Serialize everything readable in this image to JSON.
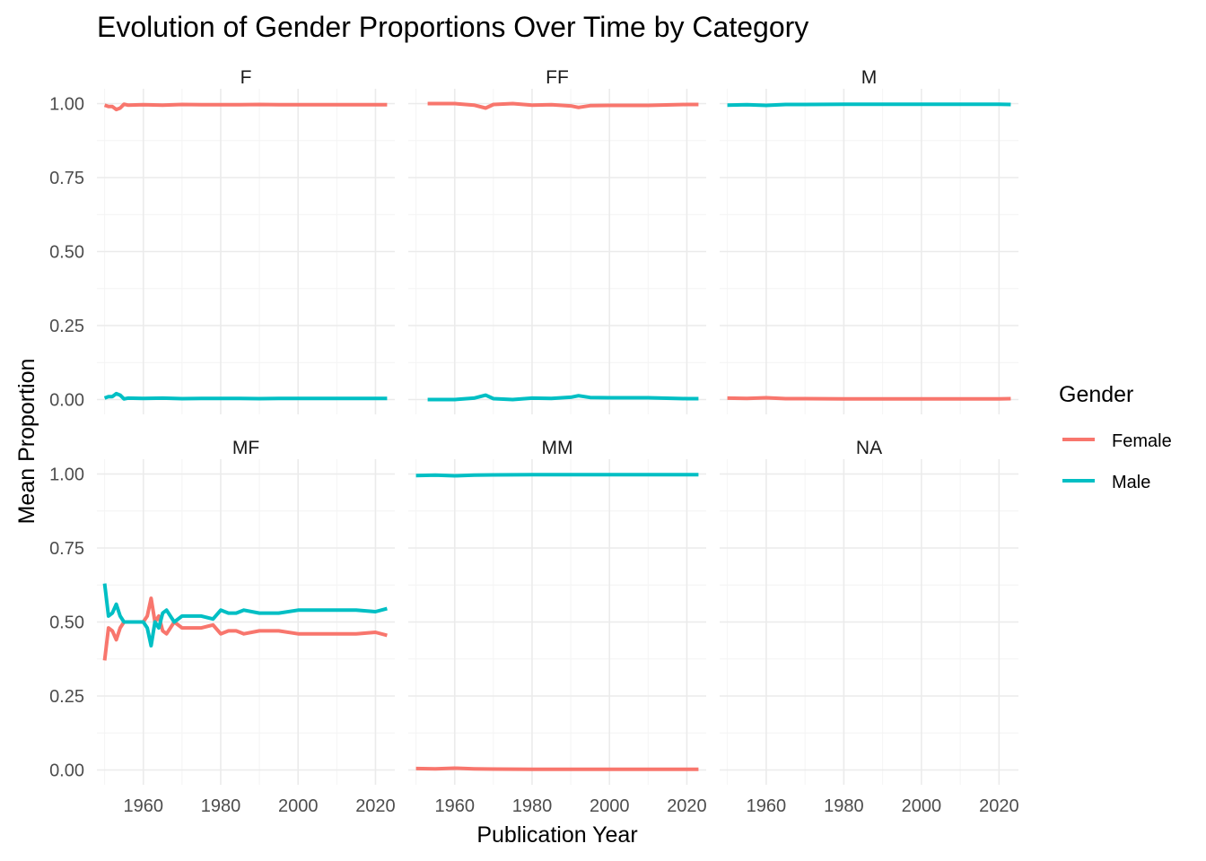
{
  "chart_data": {
    "type": "line",
    "title": "Evolution of Gender Proportions Over Time by Category",
    "xlabel": "Publication Year",
    "ylabel": "Mean Proportion",
    "xlim": [
      1948,
      2025
    ],
    "ylim": [
      -0.05,
      1.05
    ],
    "x_ticks": [
      1960,
      1980,
      2000,
      2020
    ],
    "y_ticks": [
      0.0,
      0.25,
      0.5,
      0.75,
      1.0
    ],
    "y_tick_labels": [
      "0.00",
      "0.25",
      "0.50",
      "0.75",
      "1.00"
    ],
    "grid": true,
    "legend": {
      "title": "Gender",
      "position": "right",
      "entries": [
        {
          "name": "Female",
          "color": "#F8766D"
        },
        {
          "name": "Male",
          "color": "#00BFC4"
        }
      ]
    },
    "facets": [
      {
        "label": "F",
        "series": [
          {
            "name": "Female",
            "x": [
              1950,
              1951,
              1952,
              1953,
              1954,
              1955,
              1956,
              1960,
              1965,
              1970,
              1975,
              1980,
              1985,
              1990,
              1995,
              2000,
              2005,
              2010,
              2015,
              2020,
              2023
            ],
            "values": [
              0.995,
              0.99,
              0.99,
              0.98,
              0.985,
              0.998,
              0.995,
              0.996,
              0.995,
              0.997,
              0.996,
              0.996,
              0.996,
              0.997,
              0.996,
              0.996,
              0.996,
              0.996,
              0.996,
              0.996,
              0.996
            ]
          },
          {
            "name": "Male",
            "x": [
              1950,
              1951,
              1952,
              1953,
              1954,
              1955,
              1956,
              1960,
              1965,
              1970,
              1975,
              1980,
              1985,
              1990,
              1995,
              2000,
              2005,
              2010,
              2015,
              2020,
              2023
            ],
            "values": [
              0.005,
              0.01,
              0.01,
              0.02,
              0.015,
              0.002,
              0.005,
              0.004,
              0.005,
              0.003,
              0.004,
              0.004,
              0.004,
              0.003,
              0.004,
              0.004,
              0.004,
              0.004,
              0.004,
              0.004,
              0.004
            ]
          }
        ]
      },
      {
        "label": "FF",
        "series": [
          {
            "name": "Female",
            "x": [
              1953,
              1960,
              1965,
              1968,
              1970,
              1975,
              1980,
              1985,
              1990,
              1992,
              1995,
              2000,
              2010,
              2020,
              2023
            ],
            "values": [
              1.0,
              1.0,
              0.995,
              0.985,
              0.997,
              1.0,
              0.995,
              0.996,
              0.992,
              0.987,
              0.993,
              0.994,
              0.994,
              0.997,
              0.997
            ]
          },
          {
            "name": "Male",
            "x": [
              1953,
              1960,
              1965,
              1968,
              1970,
              1975,
              1980,
              1985,
              1990,
              1992,
              1995,
              2000,
              2010,
              2020,
              2023
            ],
            "values": [
              0.0,
              0.0,
              0.005,
              0.015,
              0.003,
              0.0,
              0.005,
              0.004,
              0.008,
              0.013,
              0.007,
              0.006,
              0.006,
              0.003,
              0.003
            ]
          }
        ]
      },
      {
        "label": "M",
        "series": [
          {
            "name": "Female",
            "x": [
              1950,
              1955,
              1960,
              1965,
              1970,
              1980,
              1990,
              2000,
              2010,
              2020,
              2023
            ],
            "values": [
              0.005,
              0.004,
              0.006,
              0.003,
              0.003,
              0.002,
              0.002,
              0.002,
              0.002,
              0.002,
              0.003
            ]
          },
          {
            "name": "Male",
            "x": [
              1950,
              1955,
              1960,
              1965,
              1970,
              1980,
              1990,
              2000,
              2010,
              2020,
              2023
            ],
            "values": [
              0.995,
              0.996,
              0.994,
              0.997,
              0.997,
              0.998,
              0.998,
              0.998,
              0.998,
              0.998,
              0.997
            ]
          }
        ]
      },
      {
        "label": "MF",
        "series": [
          {
            "name": "Female",
            "x": [
              1950,
              1951,
              1952,
              1953,
              1954,
              1955,
              1956,
              1958,
              1960,
              1961,
              1962,
              1963,
              1964,
              1965,
              1966,
              1968,
              1970,
              1972,
              1975,
              1978,
              1980,
              1982,
              1984,
              1986,
              1990,
              1995,
              2000,
              2005,
              2010,
              2015,
              2020,
              2023
            ],
            "values": [
              0.37,
              0.48,
              0.47,
              0.44,
              0.48,
              0.5,
              0.5,
              0.5,
              0.5,
              0.52,
              0.58,
              0.5,
              0.52,
              0.47,
              0.46,
              0.5,
              0.48,
              0.48,
              0.48,
              0.49,
              0.46,
              0.47,
              0.47,
              0.46,
              0.47,
              0.47,
              0.46,
              0.46,
              0.46,
              0.46,
              0.465,
              0.455
            ]
          },
          {
            "name": "Male",
            "x": [
              1950,
              1951,
              1952,
              1953,
              1954,
              1955,
              1956,
              1958,
              1960,
              1961,
              1962,
              1963,
              1964,
              1965,
              1966,
              1968,
              1970,
              1972,
              1975,
              1978,
              1980,
              1982,
              1984,
              1986,
              1990,
              1995,
              2000,
              2005,
              2010,
              2015,
              2020,
              2023
            ],
            "values": [
              0.63,
              0.52,
              0.53,
              0.56,
              0.52,
              0.5,
              0.5,
              0.5,
              0.5,
              0.48,
              0.42,
              0.5,
              0.48,
              0.53,
              0.54,
              0.5,
              0.52,
              0.52,
              0.52,
              0.51,
              0.54,
              0.53,
              0.53,
              0.54,
              0.53,
              0.53,
              0.54,
              0.54,
              0.54,
              0.54,
              0.535,
              0.545
            ]
          }
        ]
      },
      {
        "label": "MM",
        "series": [
          {
            "name": "Female",
            "x": [
              1950,
              1955,
              1960,
              1965,
              1970,
              1980,
              1990,
              2000,
              2010,
              2020,
              2023
            ],
            "values": [
              0.005,
              0.004,
              0.006,
              0.004,
              0.003,
              0.002,
              0.002,
              0.002,
              0.002,
              0.002,
              0.002
            ]
          },
          {
            "name": "Male",
            "x": [
              1950,
              1955,
              1960,
              1965,
              1970,
              1980,
              1990,
              2000,
              2010,
              2020,
              2023
            ],
            "values": [
              0.995,
              0.996,
              0.994,
              0.996,
              0.997,
              0.998,
              0.998,
              0.998,
              0.998,
              0.998,
              0.998
            ]
          }
        ]
      },
      {
        "label": "NA",
        "series": []
      }
    ]
  }
}
